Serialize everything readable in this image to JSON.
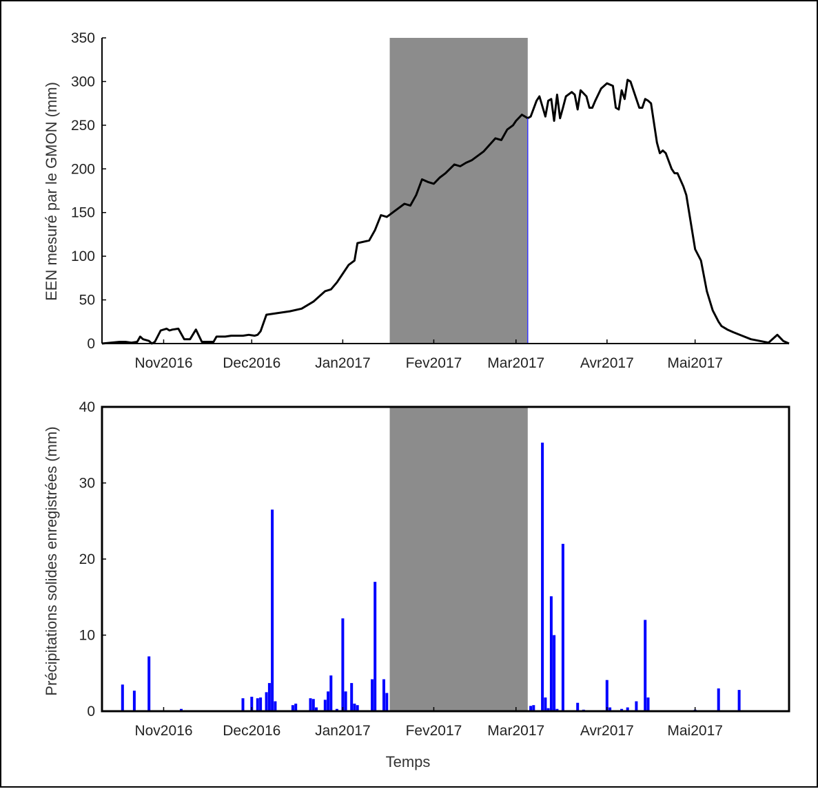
{
  "chart_data": [
    {
      "type": "line",
      "title": "",
      "xlabel": "",
      "ylabel": "EEN mesuré par le GMON (mm)",
      "ylim": [
        0,
        350
      ],
      "yticks": [
        0,
        50,
        100,
        150,
        200,
        250,
        300,
        350
      ],
      "xlim": [
        "2016-10-11",
        "2017-06-02"
      ],
      "xticks": [
        {
          "date": "2016-11-01",
          "label": "Nov2016"
        },
        {
          "date": "2016-12-01",
          "label": "Dec2016"
        },
        {
          "date": "2017-01-01",
          "label": "Jan2017"
        },
        {
          "date": "2017-02-01",
          "label": "Fev2017"
        },
        {
          "date": "2017-03-01",
          "label": "Mar2017"
        },
        {
          "date": "2017-04-01",
          "label": "Avr2017"
        },
        {
          "date": "2017-05-01",
          "label": "Mai2017"
        }
      ],
      "shaded_period": [
        "2017-01-17",
        "2017-03-05"
      ],
      "shade_color": "#8c8c8c",
      "line_color": "#000000",
      "grid": false,
      "series": [
        {
          "x": [
            "2016-10-11",
            "2016-10-17",
            "2016-10-19",
            "2016-10-21",
            "2016-10-23",
            "2016-10-24",
            "2016-10-25",
            "2016-10-27",
            "2016-10-28",
            "2016-10-29",
            "2016-10-31",
            "2016-11-02",
            "2016-11-03",
            "2016-11-04",
            "2016-11-06",
            "2016-11-08",
            "2016-11-10",
            "2016-11-12",
            "2016-11-14",
            "2016-11-15",
            "2016-11-16",
            "2016-11-18",
            "2016-11-19",
            "2016-11-20",
            "2016-11-22",
            "2016-11-24",
            "2016-11-26",
            "2016-11-28",
            "2016-11-30",
            "2016-12-02",
            "2016-12-03",
            "2016-12-04",
            "2016-12-06",
            "2016-12-10",
            "2016-12-14",
            "2016-12-18",
            "2016-12-22",
            "2016-12-26",
            "2016-12-28",
            "2016-12-30",
            "2017-01-01",
            "2017-01-03",
            "2017-01-05",
            "2017-01-06",
            "2017-01-10",
            "2017-01-12",
            "2017-01-14",
            "2017-01-16",
            "2017-01-18",
            "2017-01-22",
            "2017-01-24",
            "2017-01-26",
            "2017-01-28",
            "2017-01-30",
            "2017-02-01",
            "2017-02-03",
            "2017-02-05",
            "2017-02-08",
            "2017-02-10",
            "2017-02-12",
            "2017-02-14",
            "2017-02-18",
            "2017-02-22",
            "2017-02-24",
            "2017-02-26",
            "2017-02-28",
            "2017-03-01",
            "2017-03-03",
            "2017-03-05",
            "2017-03-06",
            "2017-03-08",
            "2017-03-09",
            "2017-03-11",
            "2017-03-12",
            "2017-03-13",
            "2017-03-14",
            "2017-03-15",
            "2017-03-16",
            "2017-03-17",
            "2017-03-18",
            "2017-03-20",
            "2017-03-21",
            "2017-03-22",
            "2017-03-23",
            "2017-03-25",
            "2017-03-26",
            "2017-03-27",
            "2017-03-28",
            "2017-03-30",
            "2017-04-01",
            "2017-04-03",
            "2017-04-04",
            "2017-04-05",
            "2017-04-06",
            "2017-04-07",
            "2017-04-08",
            "2017-04-09",
            "2017-04-12",
            "2017-04-13",
            "2017-04-14",
            "2017-04-15",
            "2017-04-16",
            "2017-04-18",
            "2017-04-19",
            "2017-04-20",
            "2017-04-21",
            "2017-04-23",
            "2017-04-24",
            "2017-04-25",
            "2017-04-27",
            "2017-04-28",
            "2017-05-01",
            "2017-05-03",
            "2017-05-05",
            "2017-05-07",
            "2017-05-09",
            "2017-05-10",
            "2017-05-11",
            "2017-05-12",
            "2017-05-14",
            "2017-05-17",
            "2017-05-20",
            "2017-05-23",
            "2017-05-26",
            "2017-05-28",
            "2017-05-29",
            "2017-05-31",
            "2017-06-02"
          ],
          "y": [
            0,
            2,
            2,
            1,
            2,
            8,
            5,
            3,
            0,
            2,
            15,
            17,
            15,
            16,
            17,
            5,
            5,
            16,
            2,
            2,
            2,
            2,
            8,
            8,
            8,
            9,
            9,
            9,
            10,
            9,
            10,
            14,
            33,
            35,
            37,
            40,
            48,
            60,
            62,
            70,
            80,
            90,
            95,
            115,
            118,
            130,
            147,
            145,
            150,
            160,
            158,
            170,
            188,
            185,
            183,
            190,
            195,
            205,
            203,
            207,
            210,
            220,
            235,
            233,
            245,
            250,
            255,
            262,
            258,
            260,
            278,
            283,
            260,
            278,
            280,
            255,
            285,
            258,
            270,
            283,
            288,
            285,
            268,
            290,
            283,
            270,
            270,
            278,
            292,
            298,
            295,
            270,
            268,
            290,
            280,
            302,
            300,
            270,
            270,
            280,
            278,
            275,
            230,
            218,
            221,
            218,
            200,
            195,
            195,
            180,
            170,
            108,
            95,
            60,
            38,
            25,
            20,
            18,
            16,
            13,
            9,
            5,
            3,
            1,
            7,
            10,
            3,
            0
          ]
        }
      ]
    },
    {
      "type": "bar",
      "title": "",
      "xlabel": "Temps",
      "ylabel": "Précipitations solides enregistrées (mm)",
      "ylim": [
        0,
        40
      ],
      "yticks": [
        0,
        10,
        20,
        30,
        40
      ],
      "xlim": [
        "2016-10-11",
        "2017-06-02"
      ],
      "xticks": [
        {
          "date": "2016-11-01",
          "label": "Nov2016"
        },
        {
          "date": "2016-12-01",
          "label": "Dec2016"
        },
        {
          "date": "2017-01-01",
          "label": "Jan2017"
        },
        {
          "date": "2017-02-01",
          "label": "Fev2017"
        },
        {
          "date": "2017-03-01",
          "label": "Mar2017"
        },
        {
          "date": "2017-04-01",
          "label": "Avr2017"
        },
        {
          "date": "2017-05-01",
          "label": "Mai2017"
        }
      ],
      "shaded_period": [
        "2017-01-17",
        "2017-03-05"
      ],
      "shade_color": "#8c8c8c",
      "bar_color": "#0000ff",
      "grid": false,
      "series": [
        {
          "x": [
            "2016-10-18",
            "2016-10-22",
            "2016-10-27",
            "2016-11-07",
            "2016-11-28",
            "2016-12-01",
            "2016-12-03",
            "2016-12-04",
            "2016-12-06",
            "2016-12-07",
            "2016-12-08",
            "2016-12-09",
            "2016-12-15",
            "2016-12-16",
            "2016-12-21",
            "2016-12-22",
            "2016-12-23",
            "2016-12-26",
            "2016-12-27",
            "2016-12-28",
            "2016-12-30",
            "2017-01-01",
            "2017-01-02",
            "2017-01-04",
            "2017-01-05",
            "2017-01-06",
            "2017-01-11",
            "2017-01-12",
            "2017-01-15",
            "2017-01-16",
            "2017-03-06",
            "2017-03-07",
            "2017-03-10",
            "2017-03-11",
            "2017-03-12",
            "2017-03-13",
            "2017-03-14",
            "2017-03-15",
            "2017-03-17",
            "2017-03-22",
            "2017-03-24",
            "2017-03-26",
            "2017-04-01",
            "2017-04-02",
            "2017-04-06",
            "2017-04-08",
            "2017-04-11",
            "2017-04-14",
            "2017-04-15",
            "2017-05-01",
            "2017-05-09",
            "2017-05-16"
          ],
          "values": [
            3.5,
            2.7,
            7.2,
            0.3,
            1.7,
            1.9,
            1.7,
            1.8,
            2.5,
            3.7,
            26.5,
            1.3,
            0.8,
            1.0,
            1.7,
            1.6,
            0.5,
            1.5,
            2.6,
            4.7,
            0.3,
            12.2,
            2.6,
            3.7,
            1.0,
            0.8,
            4.2,
            17.0,
            4.2,
            2.4,
            0.7,
            0.8,
            35.3,
            1.8,
            0.4,
            15.1,
            10.0,
            0.3,
            22.0,
            1.1,
            0.2,
            0.1,
            4.1,
            0.5,
            0.3,
            0.5,
            1.3,
            12.0,
            1.8,
            0.2,
            3.0,
            2.8
          ]
        }
      ]
    }
  ]
}
